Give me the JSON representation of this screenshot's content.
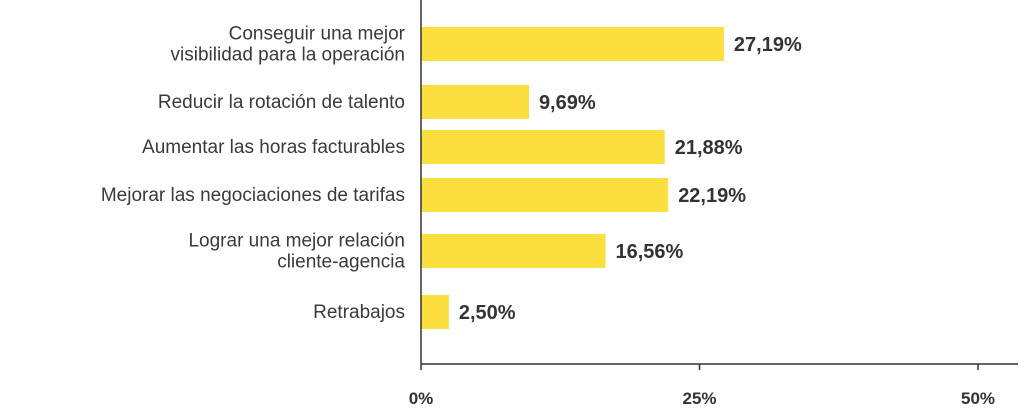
{
  "chart_data": {
    "type": "bar",
    "orientation": "horizontal",
    "categories": [
      [
        "Conseguir una mejor",
        "visibilidad para la operación"
      ],
      [
        "Reducir la rotación de talento"
      ],
      [
        "Aumentar las horas facturables"
      ],
      [
        "Mejorar las negociaciones de tarifas"
      ],
      [
        "Lograr una mejor relación",
        "cliente-agencia"
      ],
      [
        "Retrabajos"
      ]
    ],
    "values": [
      27.19,
      9.69,
      21.88,
      22.19,
      16.56,
      2.5
    ],
    "value_labels": [
      "27,19%",
      "9,69%",
      "21,88%",
      "22,19%",
      "16,56%",
      "2,50%"
    ],
    "xlim": [
      0,
      50
    ],
    "xticks": [
      0,
      25,
      50
    ],
    "xtick_labels": [
      "0%",
      "25%",
      "50%"
    ],
    "bar_color": "#FADF3F",
    "axis_color": "#333333",
    "grid": false,
    "title": "",
    "xlabel": "",
    "ylabel": ""
  }
}
